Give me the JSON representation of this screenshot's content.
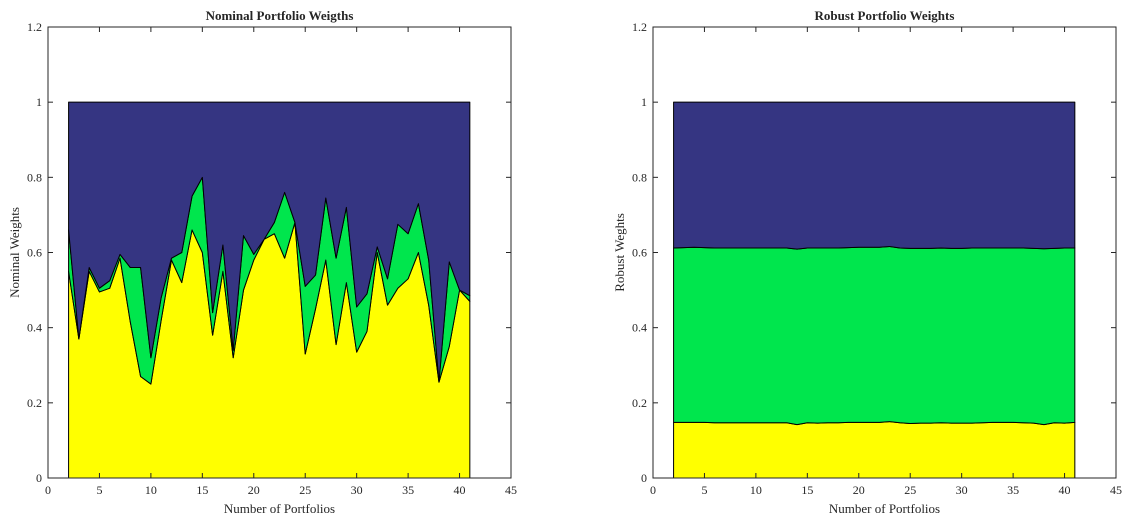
{
  "chart_data": [
    {
      "type": "area",
      "stacked": true,
      "title": "Nominal Portfolio Weigths",
      "xlabel": "Number of Portfolios",
      "ylabel": "Nominal Weights",
      "xlim": [
        0,
        45
      ],
      "ylim": [
        0,
        1.2
      ],
      "xticks": [
        "0",
        "5",
        "10",
        "15",
        "20",
        "25",
        "30",
        "35",
        "40",
        "45"
      ],
      "yticks": [
        "0",
        "0.2",
        "0.4",
        "0.6",
        "0.8",
        "1",
        "1.2"
      ],
      "grid": false,
      "legend": "none",
      "x": [
        2,
        3,
        4,
        5,
        6,
        7,
        8,
        9,
        10,
        11,
        12,
        13,
        14,
        15,
        16,
        17,
        18,
        19,
        20,
        21,
        22,
        23,
        24,
        25,
        26,
        27,
        28,
        29,
        30,
        31,
        32,
        33,
        34,
        35,
        36,
        37,
        38,
        39,
        40,
        41
      ],
      "series": [
        {
          "color": "#FFFF00",
          "values": [
            0.55,
            0.37,
            0.55,
            0.495,
            0.505,
            0.585,
            0.415,
            0.27,
            0.25,
            0.42,
            0.58,
            0.52,
            0.66,
            0.6,
            0.38,
            0.55,
            0.32,
            0.5,
            0.58,
            0.635,
            0.65,
            0.585,
            0.68,
            0.33,
            0.45,
            0.58,
            0.355,
            0.52,
            0.335,
            0.39,
            0.6,
            0.46,
            0.505,
            0.53,
            0.6,
            0.46,
            0.255,
            0.35,
            0.5,
            0.47
          ]
        },
        {
          "color": "#00E64D",
          "values": [
            0.11,
            0.0,
            0.01,
            0.01,
            0.02,
            0.01,
            0.145,
            0.29,
            0.07,
            0.06,
            0.005,
            0.08,
            0.09,
            0.2,
            0.06,
            0.07,
            0.02,
            0.145,
            0.015,
            0.0,
            0.03,
            0.175,
            0.0,
            0.18,
            0.09,
            0.165,
            0.23,
            0.2,
            0.12,
            0.1,
            0.015,
            0.07,
            0.17,
            0.12,
            0.13,
            0.12,
            0.0,
            0.225,
            0.0,
            0.015
          ]
        },
        {
          "color": "#353582",
          "values": [
            0.34,
            0.63,
            0.44,
            0.495,
            0.475,
            0.405,
            0.44,
            0.44,
            0.68,
            0.52,
            0.415,
            0.4,
            0.25,
            0.2,
            0.56,
            0.38,
            0.66,
            0.355,
            0.405,
            0.365,
            0.32,
            0.24,
            0.32,
            0.49,
            0.46,
            0.255,
            0.415,
            0.28,
            0.545,
            0.51,
            0.385,
            0.47,
            0.325,
            0.35,
            0.27,
            0.42,
            0.745,
            0.425,
            0.5,
            0.515
          ]
        }
      ]
    },
    {
      "type": "area",
      "stacked": true,
      "title": "Robust Portfolio Weights",
      "xlabel": "Number of Portfolios",
      "ylabel": "Robust Weghts",
      "xlim": [
        0,
        45
      ],
      "ylim": [
        0,
        1.2
      ],
      "xticks": [
        "0",
        "5",
        "10",
        "15",
        "20",
        "25",
        "30",
        "35",
        "40",
        "45"
      ],
      "yticks": [
        "0",
        "0.2",
        "0.4",
        "0.6",
        "0.8",
        "1",
        "1.2"
      ],
      "grid": false,
      "legend": "none",
      "x": [
        2,
        3,
        4,
        5,
        6,
        7,
        8,
        9,
        10,
        11,
        12,
        13,
        14,
        15,
        16,
        17,
        18,
        19,
        20,
        21,
        22,
        23,
        24,
        25,
        26,
        27,
        28,
        29,
        30,
        31,
        32,
        33,
        34,
        35,
        36,
        37,
        38,
        39,
        40,
        41
      ],
      "series": [
        {
          "color": "#FFFF00",
          "values": [
            0.148,
            0.148,
            0.148,
            0.148,
            0.147,
            0.147,
            0.147,
            0.147,
            0.147,
            0.147,
            0.147,
            0.147,
            0.142,
            0.147,
            0.146,
            0.147,
            0.147,
            0.148,
            0.148,
            0.148,
            0.148,
            0.15,
            0.147,
            0.145,
            0.146,
            0.146,
            0.147,
            0.146,
            0.146,
            0.146,
            0.147,
            0.148,
            0.148,
            0.148,
            0.147,
            0.146,
            0.142,
            0.147,
            0.146,
            0.148
          ]
        },
        {
          "color": "#00E64D",
          "values": [
            0.464,
            0.465,
            0.466,
            0.465,
            0.465,
            0.465,
            0.465,
            0.465,
            0.465,
            0.465,
            0.465,
            0.465,
            0.467,
            0.465,
            0.466,
            0.465,
            0.465,
            0.465,
            0.466,
            0.466,
            0.466,
            0.466,
            0.465,
            0.466,
            0.465,
            0.465,
            0.465,
            0.465,
            0.465,
            0.466,
            0.465,
            0.464,
            0.464,
            0.464,
            0.465,
            0.465,
            0.468,
            0.464,
            0.466,
            0.464
          ]
        },
        {
          "color": "#353582",
          "values": [
            0.388,
            0.387,
            0.386,
            0.387,
            0.388,
            0.388,
            0.388,
            0.388,
            0.388,
            0.388,
            0.388,
            0.388,
            0.391,
            0.388,
            0.388,
            0.388,
            0.388,
            0.387,
            0.386,
            0.386,
            0.386,
            0.384,
            0.388,
            0.389,
            0.389,
            0.389,
            0.388,
            0.389,
            0.389,
            0.388,
            0.388,
            0.388,
            0.388,
            0.388,
            0.388,
            0.389,
            0.39,
            0.389,
            0.388,
            0.388
          ]
        }
      ]
    }
  ]
}
